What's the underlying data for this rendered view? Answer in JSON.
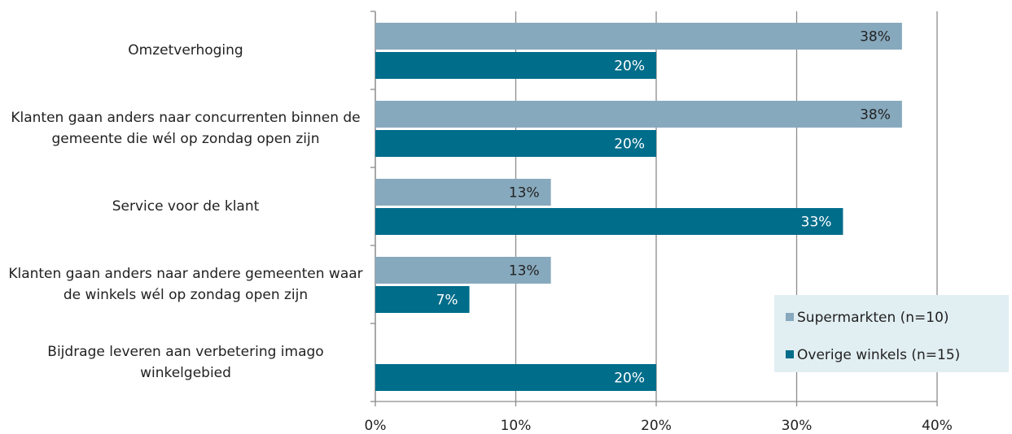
{
  "chart_data": {
    "type": "bar",
    "orientation": "horizontal",
    "categories": [
      "Omzetverhoging",
      "Klanten gaan anders naar concurrenten binnen de gemeente die wél op zondag open zijn",
      "Service voor de klant",
      "Klanten gaan anders naar andere gemeenten waar de winkels wél op zondag open zijn",
      "Bijdrage leveren aan verbetering imago winkelgebied"
    ],
    "series": [
      {
        "name": "Supermarkten (n=10)",
        "color": "#87a9bd",
        "values": [
          37.5,
          37.5,
          12.5,
          12.5,
          null
        ],
        "value_labels": [
          "38%",
          "38%",
          "13%",
          "13%",
          null
        ]
      },
      {
        "name": "Overige winkels (n=15)",
        "color": "#006d8a",
        "values": [
          20,
          20,
          33.3,
          6.7,
          20
        ],
        "value_labels": [
          "20%",
          "20%",
          "33%",
          "7%",
          "20%"
        ]
      }
    ],
    "xlim": [
      0,
      40
    ],
    "xticks": [
      {
        "value": 0,
        "label": "0%"
      },
      {
        "value": 10,
        "label": "10%"
      },
      {
        "value": 20,
        "label": "20%"
      },
      {
        "value": 30,
        "label": "30%"
      },
      {
        "value": 40,
        "label": "40%"
      }
    ],
    "grid": true,
    "legend": "lower right"
  }
}
